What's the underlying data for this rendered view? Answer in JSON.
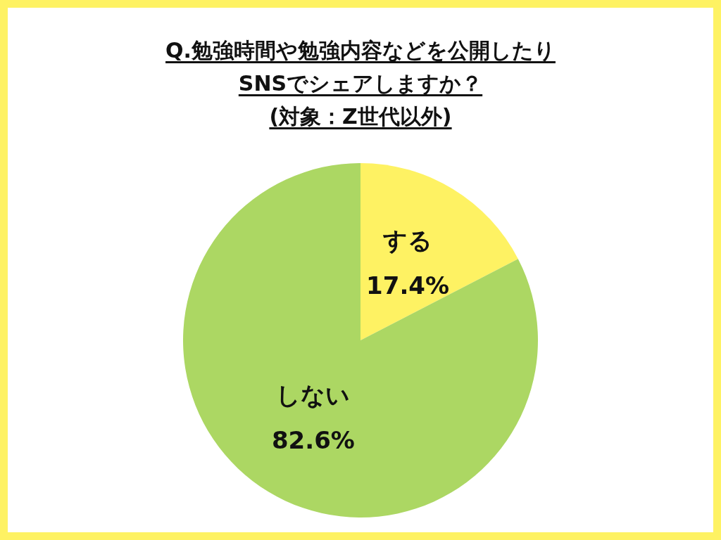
{
  "chart_data": {
    "type": "pie",
    "title": "Q.勉強時間や勉強内容などを公開したり\nSNSでシェアしますか？\n(対象：Z世代以外)",
    "categories": [
      "する",
      "しない"
    ],
    "values": [
      17.4,
      82.6
    ],
    "value_labels": [
      "17.4%",
      "82.6%"
    ],
    "colors": [
      "#fef263",
      "#acd763"
    ],
    "legend": false
  }
}
